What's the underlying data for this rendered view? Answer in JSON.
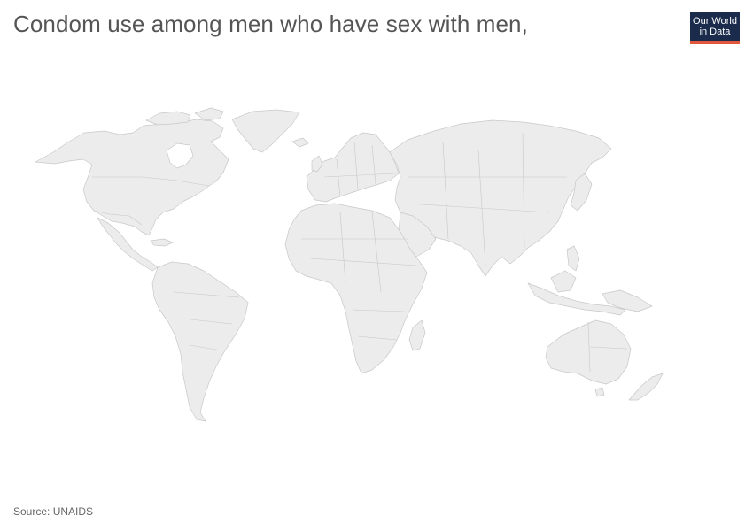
{
  "header": {
    "title": "Condom use among men who have sex with men,"
  },
  "logo": {
    "line1": "Our World",
    "line2": "in Data",
    "background_color": "#1a2b4c",
    "accent_color": "#e0573b"
  },
  "map": {
    "land_color": "#ececec",
    "border_color": "#c8c8c8"
  },
  "footer": {
    "source": "Source: UNAIDS"
  }
}
